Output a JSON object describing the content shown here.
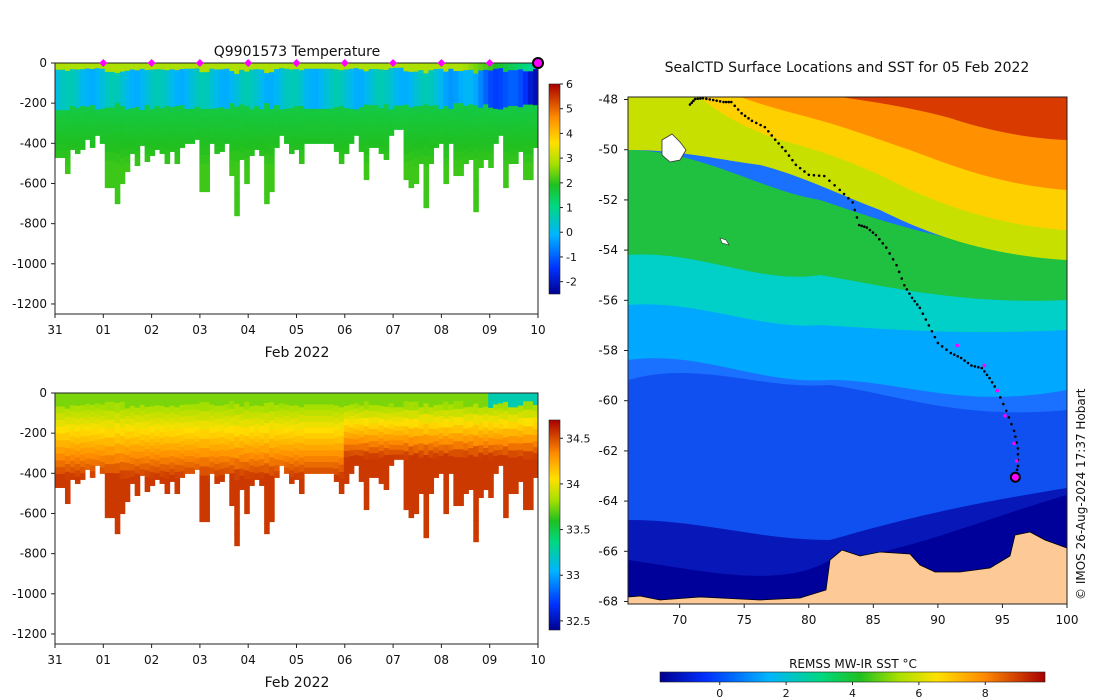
{
  "chart_data": [
    {
      "type": "heatmap",
      "title": "Q9901573  Temperature",
      "xlabel": "Feb 2022",
      "ylabel": "",
      "x_tick_labels": [
        "31",
        "01",
        "02",
        "03",
        "04",
        "05",
        "06",
        "07",
        "08",
        "09",
        "10"
      ],
      "y_ticks": [
        0,
        -200,
        -400,
        -600,
        -800,
        -1000,
        -1200
      ],
      "ylim": [
        -1250,
        0
      ],
      "colorbar": {
        "ticks": [
          6,
          5,
          4,
          3,
          2,
          1,
          0,
          -1,
          -2
        ],
        "range": [
          -2.5,
          6
        ]
      },
      "markers": {
        "color": "#ff00ff",
        "days": [
          "01",
          "02",
          "03",
          "04",
          "05",
          "06",
          "07",
          "08",
          "09"
        ],
        "final": "10"
      },
      "profile_depths_m": [
        470,
        470,
        550,
        430,
        450,
        430,
        380,
        420,
        360,
        400,
        620,
        620,
        700,
        600,
        540,
        450,
        510,
        410,
        490,
        460,
        430,
        450,
        500,
        440,
        500,
        420,
        400,
        400,
        380,
        640,
        640,
        400,
        450,
        440,
        400,
        560,
        760,
        480,
        600,
        460,
        430,
        460,
        700,
        640,
        420,
        360,
        400,
        450,
        430,
        500,
        400,
        400,
        400,
        400,
        400,
        400,
        440,
        500,
        450,
        400,
        360,
        440,
        580,
        420,
        420,
        450,
        480,
        360,
        330,
        330,
        580,
        620,
        600,
        500,
        720,
        500,
        420,
        400,
        600,
        400,
        560,
        560,
        500,
        480,
        740,
        520,
        480,
        520,
        400,
        360,
        620,
        500,
        500,
        440,
        580,
        580,
        420
      ]
    },
    {
      "type": "heatmap",
      "title": "",
      "xlabel": "Feb 2022",
      "ylabel": "",
      "x_tick_labels": [
        "31",
        "01",
        "02",
        "03",
        "04",
        "05",
        "06",
        "07",
        "08",
        "09",
        "10"
      ],
      "y_ticks": [
        0,
        -200,
        -400,
        -600,
        -800,
        -1000,
        -1200
      ],
      "ylim": [
        -1250,
        0
      ],
      "colorbar": {
        "ticks": [
          34.5,
          34,
          33.5,
          33,
          32.5
        ],
        "range": [
          32.4,
          34.7
        ]
      }
    },
    {
      "type": "heatmap",
      "title": "SealCTD Surface Locations and SST for 05 Feb 2022",
      "xlabel": "",
      "ylabel": "",
      "x_ticks": [
        70,
        75,
        80,
        85,
        90,
        95,
        100
      ],
      "y_ticks": [
        -48,
        -50,
        -52,
        -54,
        -56,
        -58,
        -60,
        -62,
        -64,
        -66,
        -68
      ],
      "xlim": [
        66,
        100
      ],
      "ylim": [
        -68.1,
        -47.9
      ],
      "colorbar": {
        "label": "REMSS MW-IR SST °C",
        "ticks": [
          0,
          2,
          4,
          6,
          8
        ],
        "range": [
          -1.8,
          9.8
        ]
      },
      "track": [
        [
          70.8,
          -48.2
        ],
        [
          71.2,
          -47.98
        ],
        [
          71.8,
          -47.95
        ],
        [
          72.6,
          -48.02
        ],
        [
          73.4,
          -48.1
        ],
        [
          74.0,
          -48.1
        ],
        [
          74.8,
          -48.55
        ],
        [
          75.6,
          -48.85
        ],
        [
          76.6,
          -49.1
        ],
        [
          77.4,
          -49.6
        ],
        [
          78.2,
          -50.05
        ],
        [
          79.0,
          -50.6
        ],
        [
          80.0,
          -51.0
        ],
        [
          81.2,
          -51.05
        ],
        [
          82.4,
          -51.6
        ],
        [
          83.4,
          -52.1
        ],
        [
          83.9,
          -53.0
        ],
        [
          84.5,
          -53.1
        ],
        [
          85.2,
          -53.4
        ],
        [
          86.0,
          -53.9
        ],
        [
          86.8,
          -54.6
        ],
        [
          87.4,
          -55.4
        ],
        [
          88.0,
          -55.9
        ],
        [
          88.6,
          -56.3
        ],
        [
          89.3,
          -57.0
        ],
        [
          90.0,
          -57.7
        ],
        [
          91.0,
          -58.1
        ],
        [
          91.8,
          -58.3
        ],
        [
          92.6,
          -58.6
        ],
        [
          93.4,
          -58.7
        ],
        [
          94.0,
          -59.1
        ],
        [
          94.6,
          -59.6
        ],
        [
          95.3,
          -60.4
        ],
        [
          95.9,
          -61.2
        ],
        [
          96.2,
          -61.9
        ],
        [
          96.2,
          -62.6
        ],
        [
          96.0,
          -63.05
        ]
      ],
      "track_markers_magenta": [
        [
          91.5,
          -57.8
        ],
        [
          93.6,
          -58.6
        ],
        [
          94.6,
          -59.6
        ],
        [
          95.2,
          -60.6
        ],
        [
          95.9,
          -61.7
        ],
        [
          96.1,
          -62.4
        ]
      ],
      "final_position": [
        96.0,
        -63.05
      ]
    }
  ],
  "credit": "© IMOS 26-Aug-2024 17:37 Hobart",
  "colors": {
    "marker": "#ff00ff",
    "land": "#fcc997",
    "track": "#000000"
  }
}
